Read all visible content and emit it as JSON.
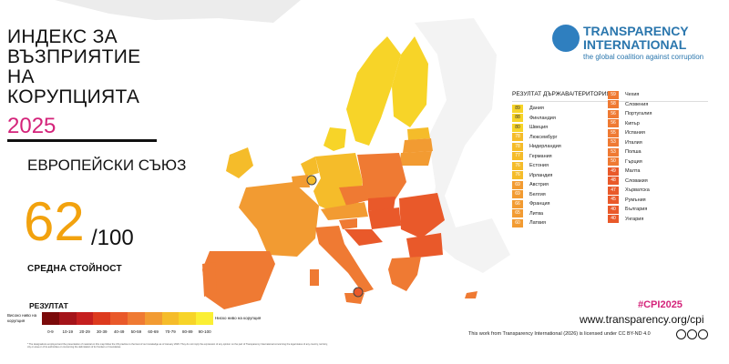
{
  "header": {
    "title_lines": [
      "ИНДЕКС ЗА",
      "ВЪЗПРИЯТИЕ",
      "НА",
      "КОРУПЦИЯТА"
    ],
    "year": "2025"
  },
  "region": "ЕВРОПЕЙСКИ СЪЮЗ",
  "average": {
    "score": "62",
    "max": "/100",
    "label": "СРЕДНА СТОЙНОСТ"
  },
  "legend": {
    "title": "РЕЗУЛТАТ",
    "low_label": "Високо ниво на корупция",
    "high_label": "Ниско ниво на корупция",
    "ranges": [
      "0-9",
      "10-19",
      "20-29",
      "30-39",
      "40-49",
      "50-59",
      "60-69",
      "70-79",
      "80-89",
      "90-100"
    ],
    "colors": [
      "#7b0a0a",
      "#a4141a",
      "#c51f1f",
      "#dd3a1e",
      "#e9592a",
      "#ef7a33",
      "#f29b32",
      "#f5bc2a",
      "#f7d428",
      "#fbef34"
    ]
  },
  "disclaimer": "* The designations employed and the presentation of material on this map follow the UN practice to the best of our knowledge as of January 2026. They do not imply the expression of any opinion on the part of Transparency International concerning the legal status of any country, territory, city or area or of its authorities or concerning the delimitation of its frontiers or boundaries.",
  "org": {
    "name": "TRANSPARENCY INTERNATIONAL",
    "tagline": "the global coalition against corruption",
    "colors": {
      "blue": "#2a76ad"
    }
  },
  "table": {
    "header_score": "РЕЗУЛТАТ",
    "header_country": "ДЪРЖАВА/ТЕРИТОРИЯ",
    "rows": [
      {
        "score": "89",
        "country": "Дания"
      },
      {
        "score": "88",
        "country": "Финландия"
      },
      {
        "score": "80",
        "country": "Швеция"
      },
      {
        "score": "78",
        "country": "Люксембург"
      },
      {
        "score": "78",
        "country": "Нидерландия"
      },
      {
        "score": "77",
        "country": "Германия"
      },
      {
        "score": "76",
        "country": "Естония"
      },
      {
        "score": "76",
        "country": "Ирландия"
      },
      {
        "score": "69",
        "country": "Австрия"
      },
      {
        "score": "69",
        "country": "Белгия"
      },
      {
        "score": "66",
        "country": "Франция"
      },
      {
        "score": "65",
        "country": "Литва"
      },
      {
        "score": "60",
        "country": "Латвия"
      },
      {
        "score": "59",
        "country": "Чехия"
      },
      {
        "score": "58",
        "country": "Словения"
      },
      {
        "score": "56",
        "country": "Португалия"
      },
      {
        "score": "56",
        "country": "Кипър"
      },
      {
        "score": "55",
        "country": "Испания"
      },
      {
        "score": "53",
        "country": "Италия"
      },
      {
        "score": "53",
        "country": "Полша"
      },
      {
        "score": "50",
        "country": "Гърция"
      },
      {
        "score": "49",
        "country": "Малта"
      },
      {
        "score": "48",
        "country": "Словакия"
      },
      {
        "score": "47",
        "country": "Хърватска"
      },
      {
        "score": "45",
        "country": "Румъния"
      },
      {
        "score": "40",
        "country": "България"
      },
      {
        "score": "40",
        "country": "Унгария"
      }
    ]
  },
  "hashtag": "#CPI2025",
  "url": "www.transparency.org/cpi",
  "licence": "This work from Transparency International (2026) is licensed under CC BY-ND 4.0"
}
